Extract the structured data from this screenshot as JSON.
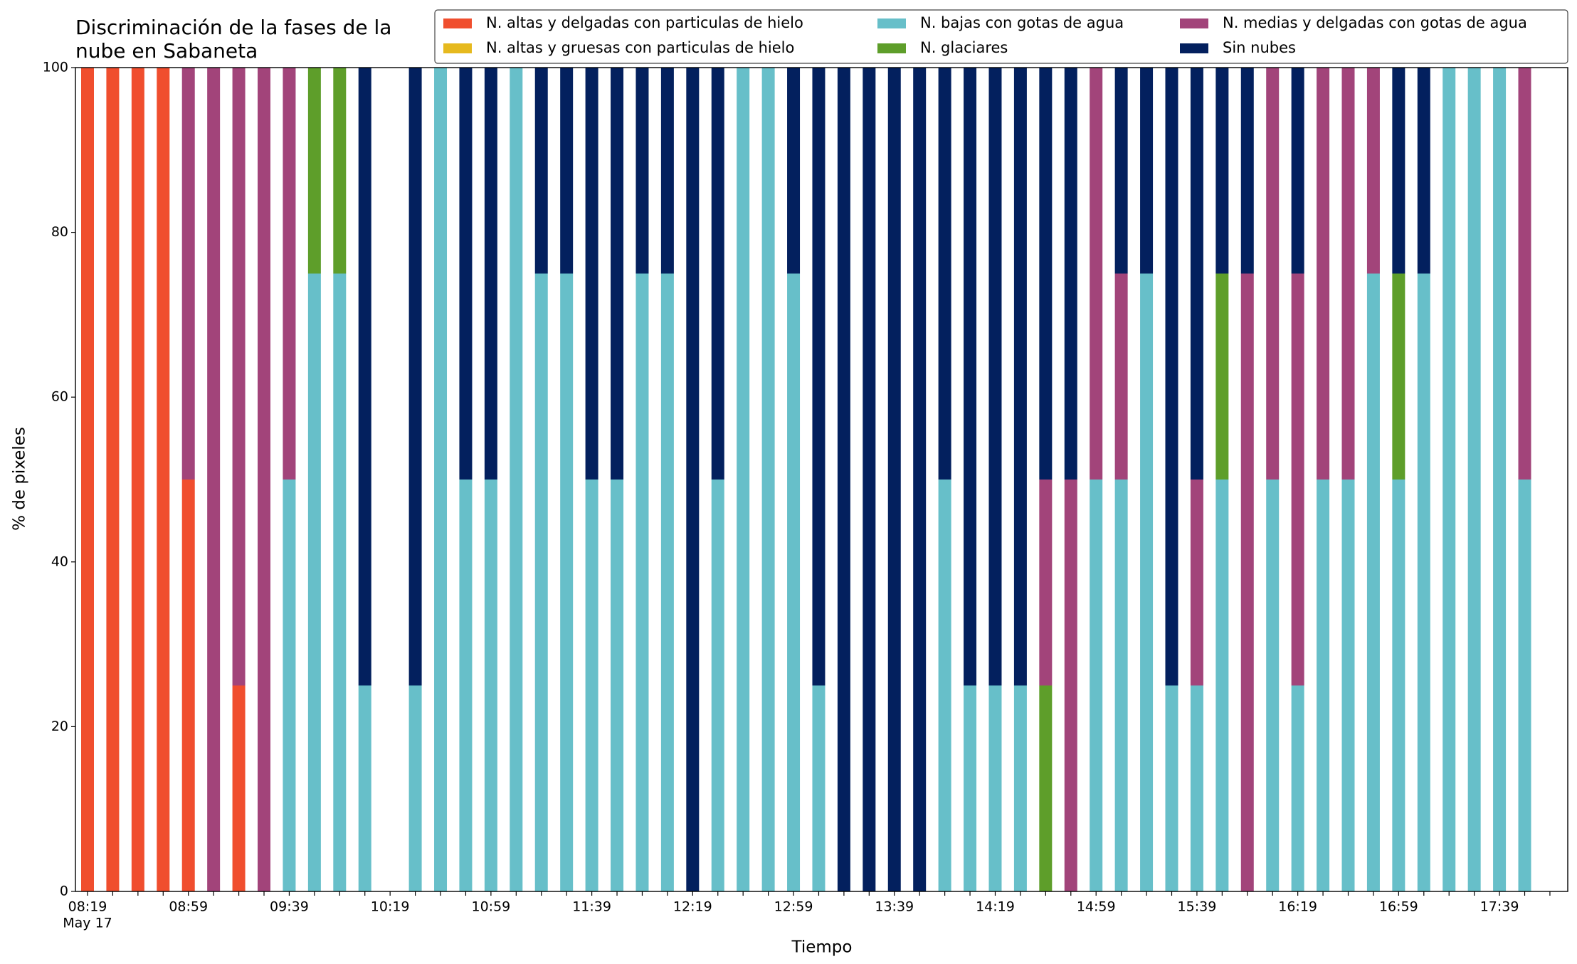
{
  "chart_data": {
    "type": "stacked_bar",
    "title": "Discriminación de la fases de la nube en Sabaneta",
    "xlabel": "Tiempo",
    "ylabel": "% de pixeles",
    "date_label": "May 17",
    "categories": [
      "08:19",
      null,
      null,
      null,
      "08:59",
      null,
      null,
      null,
      "09:39",
      null,
      null,
      null,
      "10:19",
      null,
      null,
      null,
      "10:59",
      null,
      null,
      null,
      "11:39",
      null,
      null,
      null,
      "12:19",
      null,
      null,
      null,
      "12:59",
      null,
      null,
      null,
      "13:39",
      null,
      null,
      null,
      "14:19",
      null,
      null,
      null,
      "14:59",
      null,
      null,
      null,
      "15:39",
      null,
      null,
      null,
      "16:19",
      null,
      null,
      null,
      "16:59",
      null,
      null,
      null,
      "17:39",
      null,
      null
    ],
    "ylim": [
      0,
      100
    ],
    "yticks": [
      0,
      20,
      40,
      60,
      80,
      100
    ],
    "legend": "top-right",
    "series": [
      {
        "name": "N. altas y delgadas con particulas de hielo",
        "color": "#f04e2e",
        "values": [
          100,
          100,
          100,
          100,
          50,
          0,
          25,
          0,
          0,
          0,
          0,
          0,
          0,
          0,
          0,
          0,
          0,
          0,
          0,
          0,
          0,
          0,
          0,
          0,
          0,
          0,
          0,
          0,
          0,
          0,
          0,
          0,
          0,
          0,
          0,
          0,
          0,
          0,
          0,
          0,
          0,
          0,
          0,
          0,
          0,
          0,
          0,
          0,
          0,
          0,
          0,
          0,
          0,
          0,
          0,
          0,
          0,
          0,
          0
        ]
      },
      {
        "name": "N. altas y gruesas con particulas de hielo",
        "color": "#e6b91e",
        "values": [
          0,
          0,
          0,
          0,
          0,
          0,
          0,
          0,
          0,
          0,
          0,
          0,
          0,
          0,
          0,
          0,
          0,
          0,
          0,
          0,
          0,
          0,
          0,
          0,
          0,
          0,
          0,
          0,
          0,
          0,
          0,
          0,
          0,
          0,
          0,
          0,
          0,
          0,
          0,
          0,
          0,
          0,
          0,
          0,
          0,
          0,
          0,
          0,
          0,
          0,
          0,
          0,
          0,
          0,
          0,
          0,
          0,
          0,
          0
        ]
      },
      {
        "name": "N. bajas con gotas de agua",
        "color": "#67bfc9",
        "values": [
          0,
          0,
          0,
          0,
          0,
          0,
          0,
          0,
          50,
          75,
          75,
          25,
          0,
          25,
          100,
          50,
          50,
          100,
          75,
          75,
          50,
          50,
          75,
          75,
          0,
          50,
          100,
          100,
          75,
          25,
          0,
          0,
          0,
          0,
          50,
          25,
          25,
          25,
          0,
          0,
          50,
          50,
          75,
          25,
          25,
          50,
          0,
          50,
          25,
          50,
          50,
          75,
          50,
          75,
          100,
          100,
          100,
          50,
          0
        ]
      },
      {
        "name": "N. glaciares",
        "color": "#5e9e2a",
        "values": [
          0,
          0,
          0,
          0,
          0,
          0,
          0,
          0,
          0,
          25,
          25,
          0,
          0,
          0,
          0,
          0,
          0,
          0,
          0,
          0,
          0,
          0,
          0,
          0,
          0,
          0,
          0,
          0,
          0,
          0,
          0,
          0,
          0,
          0,
          0,
          0,
          0,
          0,
          25,
          0,
          0,
          0,
          0,
          0,
          0,
          25,
          0,
          0,
          0,
          0,
          0,
          0,
          25,
          0,
          0,
          0,
          0,
          0,
          0
        ]
      },
      {
        "name": "N. medias y delgadas con gotas de agua",
        "color": "#a2447a",
        "values": [
          0,
          0,
          0,
          0,
          50,
          100,
          75,
          100,
          50,
          0,
          0,
          0,
          0,
          0,
          0,
          0,
          0,
          0,
          0,
          0,
          0,
          0,
          0,
          0,
          0,
          0,
          0,
          0,
          0,
          0,
          0,
          0,
          0,
          0,
          0,
          0,
          0,
          0,
          25,
          50,
          50,
          25,
          0,
          0,
          25,
          0,
          75,
          50,
          50,
          50,
          50,
          25,
          0,
          0,
          0,
          0,
          0,
          50,
          0
        ]
      },
      {
        "name": "Sin nubes",
        "color": "#03205e",
        "values": [
          0,
          0,
          0,
          0,
          0,
          0,
          0,
          0,
          0,
          0,
          0,
          75,
          0,
          75,
          0,
          50,
          50,
          0,
          25,
          25,
          50,
          50,
          25,
          25,
          100,
          50,
          0,
          0,
          25,
          75,
          100,
          100,
          100,
          100,
          50,
          75,
          75,
          75,
          50,
          50,
          0,
          25,
          25,
          75,
          50,
          25,
          25,
          0,
          25,
          0,
          0,
          0,
          25,
          25,
          0,
          0,
          0,
          0,
          0
        ]
      }
    ]
  }
}
